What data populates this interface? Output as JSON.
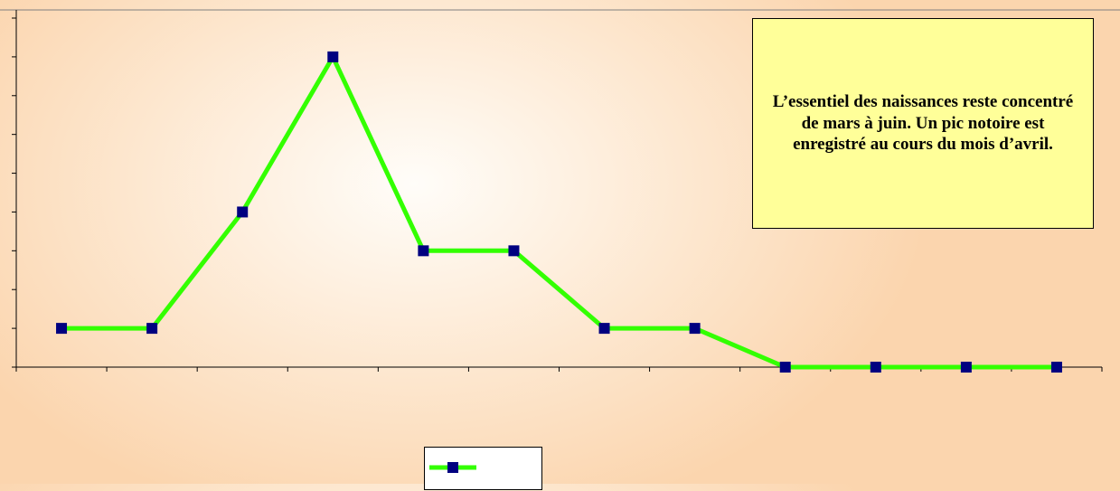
{
  "chart_data": {
    "type": "line",
    "x": [
      1,
      2,
      3,
      4,
      5,
      6,
      7,
      8,
      9,
      10,
      11,
      12
    ],
    "series": [
      {
        "values": [
          1,
          1,
          4,
          8,
          3,
          3,
          1,
          1,
          0,
          0,
          0,
          0
        ],
        "color": "#33ff00",
        "marker": "square",
        "marker_color": "#000080"
      }
    ],
    "ylim": [
      0,
      9
    ],
    "legend_position": "bottom",
    "grid": false
  },
  "annotation": {
    "text": "L’essentiel des naissances reste concentré de mars à juin. Un pic notoire est enregistré au cours du mois d’avril."
  }
}
